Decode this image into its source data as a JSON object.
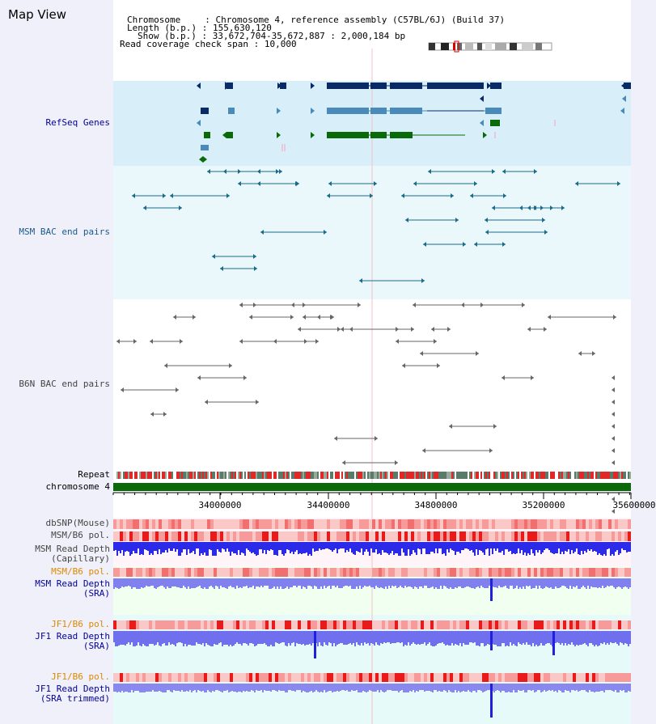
{
  "header": {
    "title": "Map View",
    "chromosome_label": "Chromosome",
    "chromosome_value": "Chromosome 4, reference assembly (C57BL/6J) (Build 37)",
    "length_label": "Length (b.p.)",
    "length_value": "155,630,120",
    "show_label": "Show (b.p.)",
    "show_value": "33,672,704-35,672,887 : 2,000,184 bp",
    "coverage_label": "Read coverage check span",
    "coverage_value": "10,000"
  },
  "tracks": {
    "refseq": "RefSeq Genes",
    "msm_bac": "MSM BAC end pairs",
    "b6n_bac": "B6N BAC end pairs",
    "repeat": "Repeat",
    "chromosome": "chromosome 4",
    "dbsnp": "dbSNP(Mouse)",
    "msm_b6_pol": "MSM/B6 pol.",
    "msm_depth_cap_1": "MSM Read Depth",
    "msm_depth_cap_2": "(Capillary)",
    "msm_b6_pol_sra": "MSM/B6 pol.",
    "msm_depth_sra_1": "MSM Read Depth",
    "msm_depth_sra_2": "(SRA)",
    "jf1_b6_pol_1": "JF1/B6 pol.",
    "jf1_depth_sra_1": "JF1 Read Depth",
    "jf1_depth_sra_2": "(SRA)",
    "jf1_b6_pol_2": "JF1/B6 pol.",
    "jf1_depth_trim_1": "JF1 Read Depth",
    "jf1_depth_trim_2": "(SRA trimmed)"
  },
  "axis": {
    "ticks": [
      "34000000",
      "34400000",
      "34800000",
      "35200000",
      "35600000"
    ]
  },
  "colors": {
    "refseq_dark": "#0a2a66",
    "refseq_mid": "#4a8ab8",
    "refseq_green": "#0a6a0a",
    "msm_bac": "#1a6a8a",
    "b6n_bac": "#666666",
    "chromosome": "#0a6a0a",
    "depth_blue": "#2222dd",
    "depth_light": "#7777ee",
    "pol_red": "#ee3333",
    "label_orange": "#dd8800",
    "label_navy": "#000099"
  }
}
